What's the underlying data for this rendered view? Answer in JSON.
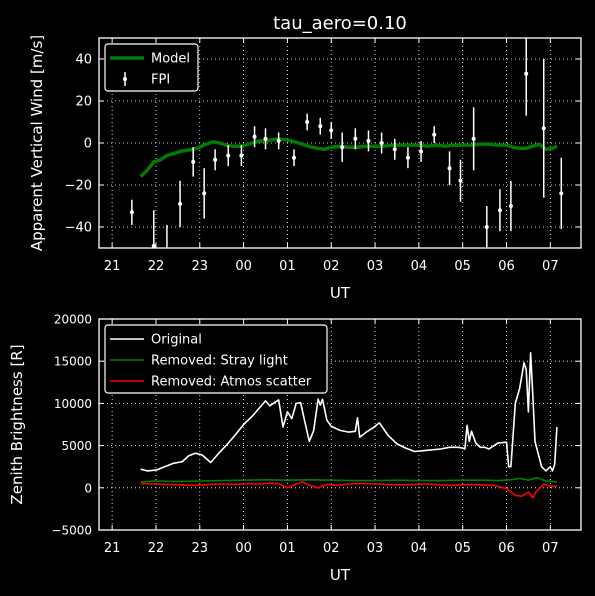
{
  "chart_data": [
    {
      "type": "line",
      "title": "tau_aero=0.10",
      "xlabel": "UT",
      "ylabel": "Apparent Vertical Wind [m/s]",
      "xlim": [
        20.7,
        31.7
      ],
      "ylim": [
        -50,
        50
      ],
      "x_ticks": [
        21,
        22,
        23,
        24,
        25,
        26,
        27,
        28,
        29,
        30,
        31
      ],
      "x_tick_labels": [
        "21",
        "22",
        "23",
        "00",
        "01",
        "02",
        "03",
        "04",
        "05",
        "06",
        "07"
      ],
      "y_ticks": [
        -40,
        -20,
        0,
        20,
        40
      ],
      "y_tick_labels": [
        "−40",
        "−20",
        "0",
        "20",
        "40"
      ],
      "grid": true,
      "legend_position": "top-left",
      "series": [
        {
          "name": "Model",
          "kind": "line",
          "color": "#007a00",
          "x": [
            21.65,
            21.8,
            21.95,
            22.1,
            22.25,
            22.4,
            22.55,
            22.7,
            22.85,
            23.0,
            23.15,
            23.3,
            23.45,
            23.6,
            23.75,
            23.9,
            24.05,
            24.2,
            24.35,
            24.5,
            24.65,
            24.8,
            24.95,
            25.1,
            25.25,
            25.4,
            25.55,
            25.7,
            25.85,
            26.0,
            26.2,
            26.4,
            26.6,
            26.8,
            27.0,
            27.2,
            27.4,
            27.6,
            27.8,
            28.0,
            28.2,
            28.4,
            28.6,
            28.8,
            29.0,
            29.2,
            29.4,
            29.6,
            29.8,
            30.0,
            30.15,
            30.3,
            30.45,
            30.6,
            30.75,
            30.9,
            31.05,
            31.15
          ],
          "y": [
            -16,
            -13,
            -9,
            -8,
            -6,
            -5,
            -4,
            -3.5,
            -3,
            -2,
            -0.5,
            0.5,
            0,
            -1,
            -1.5,
            -1.5,
            -1,
            0,
            1,
            1,
            1.5,
            2,
            1.5,
            1,
            0,
            -1,
            -2,
            -2.5,
            -3,
            -2,
            -1.5,
            -2,
            -2,
            -1.5,
            -1.5,
            -1.5,
            -1,
            -1,
            -1,
            -1,
            -1.5,
            -1,
            -1.5,
            -1,
            -1,
            -1,
            -0.5,
            -0.5,
            -1,
            -1,
            -2,
            -2.5,
            -2.5,
            -1.5,
            -0.5,
            -3,
            -2.5,
            -1.5
          ]
        },
        {
          "name": "FPI",
          "kind": "errorbar",
          "color": "#ffffff",
          "x": [
            21.45,
            21.95,
            22.25,
            22.55,
            22.85,
            23.1,
            23.35,
            23.65,
            23.95,
            24.25,
            24.5,
            24.8,
            25.15,
            25.45,
            25.75,
            26.0,
            26.25,
            26.55,
            26.85,
            27.15,
            27.45,
            27.75,
            28.05,
            28.35,
            28.7,
            28.95,
            29.25,
            29.55,
            29.85,
            30.1,
            30.45,
            30.85,
            31.25
          ],
          "y": [
            -33,
            -49,
            -51,
            -29,
            -9,
            -24,
            -8,
            -6,
            -6,
            3,
            2,
            1,
            -7,
            10,
            8,
            6,
            -2,
            2,
            1,
            0,
            -3,
            -7,
            -4,
            4,
            -12,
            -18,
            2,
            -40,
            -32,
            -30,
            33,
            7,
            -24
          ],
          "err": [
            6,
            17,
            12,
            11,
            7,
            12,
            5,
            5,
            5,
            5,
            5,
            4,
            4,
            4,
            4,
            4,
            7,
            5,
            5,
            5,
            5,
            5,
            5,
            4,
            8,
            10,
            15,
            10,
            10,
            12,
            20,
            33,
            17
          ]
        }
      ]
    },
    {
      "type": "line",
      "title": "",
      "xlabel": "UT",
      "ylabel": "Zenith Brightness [R]",
      "xlim": [
        20.7,
        31.7
      ],
      "ylim": [
        -5000,
        20000
      ],
      "x_ticks": [
        21,
        22,
        23,
        24,
        25,
        26,
        27,
        28,
        29,
        30,
        31
      ],
      "x_tick_labels": [
        "21",
        "22",
        "23",
        "00",
        "01",
        "02",
        "03",
        "04",
        "05",
        "06",
        "07"
      ],
      "y_ticks": [
        -5000,
        0,
        5000,
        10000,
        15000,
        20000
      ],
      "y_tick_labels": [
        "−5000",
        "0",
        "5000",
        "10000",
        "15000",
        "20000"
      ],
      "grid": true,
      "legend_position": "top-left",
      "series": [
        {
          "name": "Original",
          "color": "#ffffff",
          "x": [
            21.65,
            21.8,
            22.0,
            22.2,
            22.4,
            22.6,
            22.75,
            22.9,
            23.05,
            23.25,
            23.45,
            23.6,
            23.8,
            24.0,
            24.2,
            24.35,
            24.5,
            24.6,
            24.7,
            24.8,
            24.9,
            25.0,
            25.1,
            25.2,
            25.3,
            25.4,
            25.5,
            25.6,
            25.7,
            25.75,
            25.8,
            25.9,
            26.0,
            26.2,
            26.4,
            26.55,
            26.6,
            26.65,
            26.8,
            26.95,
            27.1,
            27.3,
            27.5,
            27.7,
            27.9,
            28.1,
            28.3,
            28.5,
            28.7,
            28.9,
            29.0,
            29.05,
            29.1,
            29.15,
            29.2,
            29.3,
            29.4,
            29.5,
            29.6,
            29.8,
            30.0,
            30.05,
            30.1,
            30.2,
            30.3,
            30.4,
            30.45,
            30.5,
            30.55,
            30.6,
            30.65,
            30.7,
            30.8,
            30.9,
            31.0,
            31.05,
            31.1,
            31.15
          ],
          "y": [
            2200,
            2000,
            2100,
            2500,
            2900,
            3100,
            3800,
            4100,
            3900,
            3000,
            4200,
            5000,
            6200,
            7500,
            8500,
            9400,
            10300,
            9700,
            10100,
            10400,
            7200,
            9000,
            8200,
            10000,
            10100,
            7800,
            5500,
            6800,
            10500,
            9800,
            10500,
            8000,
            7300,
            6800,
            6600,
            6700,
            8300,
            6000,
            6600,
            7100,
            7700,
            6200,
            5200,
            4700,
            4300,
            4400,
            4500,
            4600,
            4800,
            4800,
            4700,
            4600,
            7400,
            5500,
            6700,
            5300,
            4800,
            4800,
            4600,
            5300,
            5400,
            2500,
            2500,
            10000,
            11800,
            14800,
            14000,
            9000,
            16000,
            11000,
            5500,
            4500,
            2500,
            2000,
            2500,
            2000,
            2800,
            7200
          ]
        },
        {
          "name": "Removed: Stray light",
          "color": "#008000",
          "x": [
            21.65,
            22.0,
            22.5,
            23.0,
            23.5,
            24.0,
            24.5,
            25.0,
            25.5,
            26.0,
            26.5,
            27.0,
            27.5,
            28.0,
            28.5,
            29.0,
            29.5,
            29.8,
            30.1,
            30.3,
            30.5,
            30.7,
            30.9,
            31.15
          ],
          "y": [
            700,
            800,
            750,
            800,
            850,
            900,
            950,
            900,
            950,
            900,
            850,
            850,
            900,
            850,
            850,
            900,
            900,
            850,
            950,
            1100,
            900,
            1200,
            800,
            700
          ]
        },
        {
          "name": "Removed: Atmos scatter",
          "color": "#ff0000",
          "x": [
            21.65,
            22.0,
            22.3,
            22.6,
            22.9,
            23.2,
            23.5,
            23.8,
            24.1,
            24.4,
            24.6,
            24.8,
            25.0,
            25.2,
            25.35,
            25.5,
            25.7,
            25.9,
            26.1,
            26.4,
            26.7,
            27.0,
            27.3,
            27.6,
            27.9,
            28.2,
            28.5,
            28.8,
            29.1,
            29.4,
            29.7,
            30.0,
            30.2,
            30.35,
            30.5,
            30.6,
            30.7,
            30.85,
            31.0,
            31.15
          ],
          "y": [
            500,
            450,
            400,
            350,
            300,
            400,
            450,
            400,
            500,
            450,
            550,
            500,
            0,
            450,
            700,
            300,
            0,
            400,
            300,
            450,
            500,
            450,
            400,
            350,
            400,
            450,
            350,
            300,
            400,
            350,
            300,
            -100,
            -900,
            -1000,
            -500,
            -1200,
            -300,
            400,
            200,
            200
          ]
        }
      ]
    }
  ]
}
